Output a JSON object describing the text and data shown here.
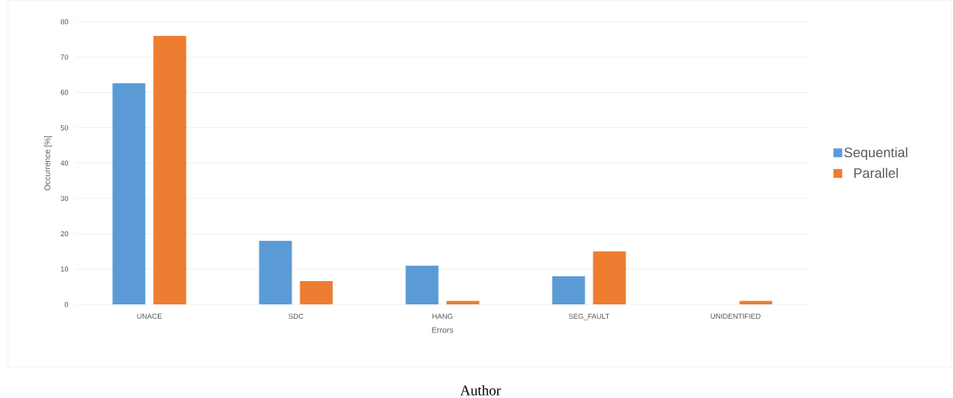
{
  "chart_data": {
    "type": "bar",
    "xlabel": "Errors",
    "ylabel": "Occurrence [%]",
    "categories": [
      "UNACE",
      "SDC",
      "HANG",
      "SEG_FAULT",
      "UNIDENTIFIED"
    ],
    "series": [
      {
        "name": "Sequential",
        "color": "#5b9bd5",
        "values": [
          62.6,
          18,
          11,
          8,
          0
        ]
      },
      {
        "name": "Parallel",
        "color": "#ed7d31",
        "values": [
          76,
          6.6,
          1,
          15,
          1
        ]
      }
    ],
    "ylim": [
      0,
      80
    ],
    "yticks": [
      0,
      10,
      20,
      30,
      40,
      50,
      60,
      70,
      80
    ],
    "grid": "y",
    "legend": "right",
    "annotations": [
      "Author"
    ]
  }
}
